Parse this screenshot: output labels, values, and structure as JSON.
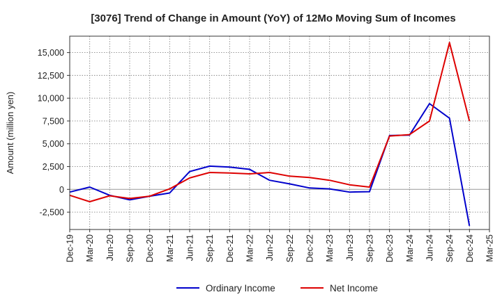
{
  "chart_data": {
    "type": "line",
    "title": "[3076]  Trend of Change in Amount (YoY) of 12Mo Moving Sum of Incomes",
    "xlabel": "",
    "ylabel": "Amount (million yen)",
    "ylim": [
      -4400,
      16800
    ],
    "yticks": [
      -2500,
      0,
      2500,
      5000,
      7500,
      10000,
      12500,
      15000
    ],
    "ytick_labels": [
      "-2,500",
      "0",
      "2,500",
      "5,000",
      "7,500",
      "10,000",
      "12,500",
      "15,000"
    ],
    "categories": [
      "Dec-19",
      "Mar-20",
      "Jun-20",
      "Sep-20",
      "Dec-20",
      "Mar-21",
      "Jun-21",
      "Sep-21",
      "Dec-21",
      "Mar-22",
      "Jun-22",
      "Sep-22",
      "Dec-22",
      "Mar-23",
      "Jun-23",
      "Sep-23",
      "Dec-23",
      "Mar-24",
      "Jun-24",
      "Sep-24",
      "Dec-24",
      "Mar-25"
    ],
    "grid": true,
    "legend_position": "bottom",
    "series": [
      {
        "name": "Ordinary Income",
        "color": "#0000cc",
        "values": [
          -300,
          250,
          -650,
          -1150,
          -750,
          -400,
          1950,
          2550,
          2450,
          2200,
          1000,
          600,
          150,
          50,
          -300,
          -250,
          5900,
          5950,
          9400,
          7800,
          -4000,
          null
        ]
      },
      {
        "name": "Net Income",
        "color": "#dd0000",
        "values": [
          -650,
          -1350,
          -700,
          -1000,
          -750,
          50,
          1250,
          1850,
          1800,
          1700,
          1850,
          1450,
          1300,
          1000,
          500,
          250,
          5850,
          6000,
          7500,
          16100,
          7500,
          null
        ]
      }
    ]
  }
}
